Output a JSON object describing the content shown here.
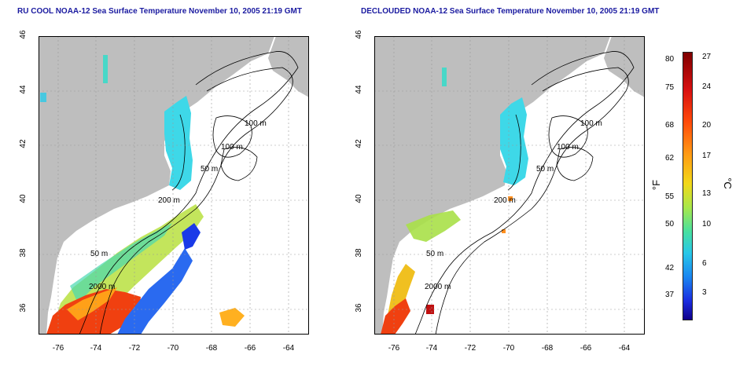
{
  "panels": [
    {
      "title": "RU COOL NOAA-12 Sea Surface Temperature November 10, 2005 21:19 GMT",
      "x_ticks": [
        "-76",
        "-74",
        "-72",
        "-70",
        "-68",
        "-66",
        "-64"
      ],
      "y_ticks": [
        "46",
        "44",
        "42",
        "40",
        "38",
        "36"
      ],
      "contour_labels": [
        "100 m",
        "100 m",
        "50 m",
        "200 m",
        "50 m",
        "2000 m"
      ]
    },
    {
      "title": "DECLOUDED NOAA-12 Sea Surface Temperature November 10, 2005 21:19 GMT",
      "x_ticks": [
        "-76",
        "-74",
        "-72",
        "-70",
        "-68",
        "-66",
        "-64"
      ],
      "y_ticks": [
        "46",
        "44",
        "42",
        "40",
        "38",
        "36"
      ],
      "contour_labels": [
        "100 m",
        "100 m",
        "50 m",
        "200 m",
        "50 m",
        "2000 m"
      ]
    }
  ],
  "colorbar": {
    "fahrenheit_unit": "°F",
    "celsius_unit": "°C",
    "fahrenheit_ticks": [
      "80",
      "75",
      "68",
      "62",
      "55",
      "50",
      "42",
      "37"
    ],
    "celsius_ticks": [
      "27",
      "24",
      "20",
      "17",
      "13",
      "10",
      "6",
      "3"
    ]
  },
  "colors": {
    "land": "#bebebe",
    "title": "#1a1aa0",
    "contour": "#000000"
  }
}
